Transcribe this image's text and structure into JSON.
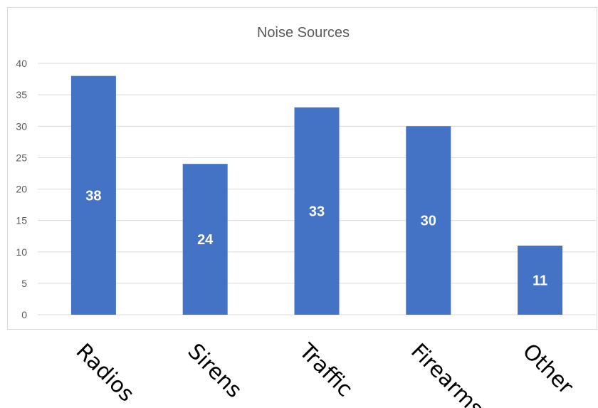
{
  "chart_data": {
    "type": "bar",
    "title": "Noise Sources",
    "xlabel": "",
    "ylabel": "",
    "categories": [
      "Radios",
      "Sirens",
      "Traffic",
      "Firearms",
      "Other"
    ],
    "values": [
      38,
      24,
      33,
      30,
      11
    ],
    "data_labels": [
      "38",
      "24",
      "33",
      "30",
      "11"
    ],
    "ylim": [
      0,
      40
    ],
    "yticks": [
      "0",
      "5",
      "10",
      "15",
      "20",
      "25",
      "30",
      "35",
      "40"
    ],
    "grid": true,
    "legend": "none",
    "bar_color": "#4472C4",
    "x_tick_rotation": "diagonal"
  }
}
